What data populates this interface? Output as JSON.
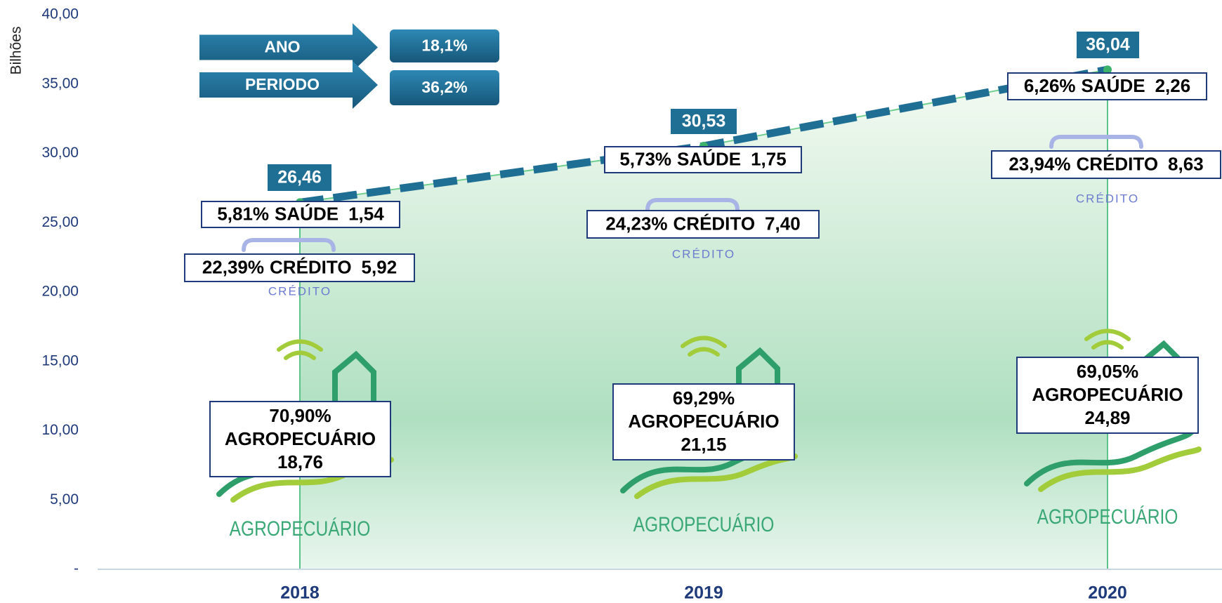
{
  "chart_data": {
    "type": "line",
    "y_label": "Bilhões",
    "categories": [
      "2018",
      "2019",
      "2020"
    ],
    "values": [
      26.46,
      30.53,
      36.04
    ],
    "value_labels": [
      "26,46",
      "30,53",
      "36,04"
    ],
    "color": "#1f6e94",
    "ylim": [
      0,
      40
    ],
    "yticks": [
      {
        "value": 0,
        "label": "-"
      },
      {
        "value": 5,
        "label": "5,00"
      },
      {
        "value": 10,
        "label": "10,00"
      },
      {
        "value": 15,
        "label": "15,00"
      },
      {
        "value": 20,
        "label": "20,00"
      },
      {
        "value": 25,
        "label": "25,00"
      },
      {
        "value": 30,
        "label": "30,00"
      },
      {
        "value": 35,
        "label": "35,00"
      },
      {
        "value": 40,
        "label": "40,00"
      }
    ],
    "segments": [
      {
        "name": "SAÚDE",
        "values": [
          1.54,
          1.75,
          2.26
        ],
        "value_labels": [
          "1,54",
          "1,75",
          "2,26"
        ],
        "shares": [
          5.81,
          5.73,
          6.26
        ],
        "share_labels": [
          "5,81%",
          "5,73%",
          "6,26%"
        ]
      },
      {
        "name": "CRÉDITO",
        "values": [
          5.92,
          7.4,
          8.63
        ],
        "value_labels": [
          "5,92",
          "7,40",
          "8,63"
        ],
        "shares": [
          22.39,
          24.23,
          23.94
        ],
        "share_labels": [
          "22,39%",
          "24,23%",
          "23,94%"
        ]
      },
      {
        "name": "AGROPECUÁRIO",
        "values": [
          18.76,
          21.15,
          24.89
        ],
        "value_labels": [
          "18,76",
          "21,15",
          "24,89"
        ],
        "shares": [
          70.9,
          69.29,
          69.05
        ],
        "share_labels": [
          "70,90%",
          "69,29%",
          "69,05%"
        ]
      }
    ],
    "growth": [
      {
        "label": "ANO",
        "value": 18.1,
        "value_label": "18,1%"
      },
      {
        "label": "PERIODO",
        "value": 36.2,
        "value_label": "36,2%"
      }
    ]
  }
}
